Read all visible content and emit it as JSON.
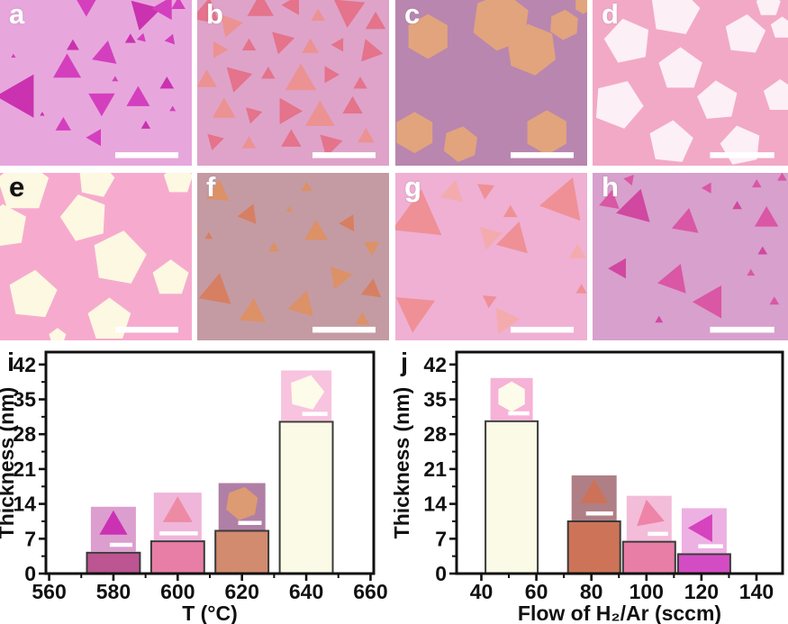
{
  "figure": {
    "panels": [
      {
        "label": "a",
        "label_color": "#ffffff",
        "bg": "#e7a7dc",
        "flake_color": "#d43fbe",
        "flake_color2": "#ca32b0",
        "shape": "triangle",
        "scalebar": true,
        "flakes": [
          [
            45,
            3,
            13,
            180
          ],
          [
            75,
            8,
            20,
            195
          ],
          [
            86,
            5,
            15,
            30
          ],
          [
            93,
            3,
            9,
            0
          ],
          [
            38,
            28,
            8,
            0
          ],
          [
            55,
            33,
            16,
            250
          ],
          [
            35,
            42,
            18,
            240
          ],
          [
            68,
            24,
            7,
            0
          ],
          [
            74,
            23,
            6,
            15
          ],
          [
            89,
            24,
            7,
            20
          ],
          [
            11,
            58,
            28,
            270
          ],
          [
            53,
            61,
            17,
            180
          ],
          [
            72,
            60,
            15,
            0
          ],
          [
            87,
            51,
            9,
            0
          ],
          [
            33,
            76,
            10,
            0
          ],
          [
            50,
            83,
            11,
            30
          ],
          [
            76,
            76,
            6,
            0
          ],
          [
            7,
            34,
            3,
            0
          ],
          [
            60,
            48,
            4,
            0
          ],
          [
            22,
            69,
            3,
            0
          ],
          [
            90,
            66,
            4,
            0
          ]
        ]
      },
      {
        "label": "b",
        "label_color": "#ffffff",
        "bg": "#dfa3c9",
        "flake_color": "#e4738b",
        "flake_color2": "#ec9292",
        "shape": "triangle",
        "scalebar": true,
        "flakes": [
          [
            5,
            8,
            18,
            10
          ],
          [
            17,
            15,
            15,
            200
          ],
          [
            33,
            5,
            17,
            0
          ],
          [
            50,
            3,
            13,
            150
          ],
          [
            63,
            10,
            9,
            0
          ],
          [
            79,
            6,
            20,
            185
          ],
          [
            93,
            14,
            13,
            0
          ],
          [
            11,
            30,
            11,
            210
          ],
          [
            27,
            28,
            9,
            0
          ],
          [
            44,
            25,
            15,
            195
          ],
          [
            59,
            29,
            11,
            0
          ],
          [
            74,
            27,
            9,
            30
          ],
          [
            90,
            31,
            15,
            220
          ],
          [
            5,
            49,
            13,
            0
          ],
          [
            21,
            47,
            17,
            195
          ],
          [
            37,
            45,
            9,
            0
          ],
          [
            54,
            49,
            20,
            0
          ],
          [
            69,
            45,
            11,
            210
          ],
          [
            85,
            51,
            9,
            0
          ],
          [
            14,
            67,
            15,
            0
          ],
          [
            29,
            69,
            11,
            195
          ],
          [
            47,
            67,
            17,
            210
          ],
          [
            64,
            71,
            19,
            0
          ],
          [
            81,
            65,
            13,
            0
          ],
          [
            9,
            85,
            11,
            195
          ],
          [
            27,
            87,
            9,
            0
          ],
          [
            49,
            85,
            13,
            0
          ],
          [
            69,
            87,
            15,
            195
          ],
          [
            88,
            83,
            11,
            0
          ]
        ]
      },
      {
        "label": "c",
        "label_color": "#ffffff",
        "bg": "#b986af",
        "flake_color": "#e2a47c",
        "shape": "hexagon",
        "scalebar": true,
        "flakes": [
          [
            17,
            22,
            25,
            0
          ],
          [
            55,
            13,
            33,
            8
          ],
          [
            71,
            30,
            29,
            -8
          ],
          [
            88,
            15,
            17,
            4
          ],
          [
            10,
            80,
            23,
            0
          ],
          [
            34,
            87,
            20,
            8
          ],
          [
            79,
            80,
            25,
            0
          ],
          [
            98,
            3,
            10,
            0
          ]
        ]
      },
      {
        "label": "d",
        "label_color": "#ffffff",
        "bg": "#f2a9c6",
        "flake_color": "#fceff6",
        "shape": "pentagon",
        "scalebar": true,
        "flakes": [
          [
            42,
            7,
            28,
            10
          ],
          [
            18,
            25,
            26,
            -12
          ],
          [
            78,
            21,
            23,
            6
          ],
          [
            45,
            42,
            25,
            0
          ],
          [
            13,
            63,
            28,
            22
          ],
          [
            64,
            61,
            23,
            -5
          ],
          [
            96,
            58,
            19,
            0
          ],
          [
            40,
            86,
            25,
            6
          ],
          [
            76,
            88,
            23,
            -12
          ],
          [
            97,
            17,
            13,
            0
          ],
          [
            90,
            3,
            14,
            0
          ]
        ]
      },
      {
        "label": "e",
        "label_color": "#111111",
        "bg": "#f6abce",
        "flake_color": "#fdf8e1",
        "shape": "pentagon",
        "scalebar": true,
        "flakes": [
          [
            12,
            8,
            30,
            0
          ],
          [
            50,
            4,
            21,
            12
          ],
          [
            93,
            4,
            17,
            0
          ],
          [
            3,
            32,
            25,
            -8
          ],
          [
            44,
            27,
            27,
            -15
          ],
          [
            62,
            51,
            31,
            10
          ],
          [
            89,
            63,
            21,
            0
          ],
          [
            17,
            73,
            28,
            6
          ],
          [
            57,
            88,
            25,
            0
          ],
          [
            30,
            98,
            10,
            0
          ]
        ]
      },
      {
        "label": "f",
        "label_color": "#ffffff",
        "bg": "#c49ba3",
        "flake_color": "#dc9166",
        "flake_color2": "#d77f62",
        "shape": "triangle",
        "scalebar": true,
        "flakes": [
          [
            11,
            12,
            15,
            6
          ],
          [
            27,
            25,
            13,
            22
          ],
          [
            57,
            9,
            7,
            0
          ],
          [
            40,
            45,
            7,
            0
          ],
          [
            10,
            71,
            21,
            10
          ],
          [
            29,
            84,
            17,
            4
          ],
          [
            62,
            36,
            15,
            0
          ],
          [
            79,
            30,
            11,
            28
          ],
          [
            91,
            44,
            10,
            180
          ],
          [
            74,
            62,
            15,
            200
          ],
          [
            91,
            70,
            13,
            8
          ],
          [
            55,
            79,
            17,
            16
          ],
          [
            86,
            88,
            9,
            0
          ],
          [
            6,
            38,
            5,
            0
          ],
          [
            48,
            22,
            4,
            0
          ]
        ]
      },
      {
        "label": "g",
        "label_color": "#ffffff",
        "bg": "#efb0d3",
        "flake_color": "#ef9097",
        "flake_color2": "#f4abae",
        "shape": "triangle",
        "scalebar": true,
        "flakes": [
          [
            12,
            27,
            32,
            6
          ],
          [
            30,
            12,
            15,
            12
          ],
          [
            47,
            10,
            11,
            185
          ],
          [
            60,
            24,
            9,
            0
          ],
          [
            49,
            38,
            15,
            195
          ],
          [
            62,
            40,
            21,
            15
          ],
          [
            88,
            17,
            28,
            20
          ],
          [
            95,
            48,
            11,
            240
          ],
          [
            10,
            82,
            25,
            185
          ],
          [
            49,
            76,
            9,
            185
          ],
          [
            57,
            88,
            17,
            205
          ],
          [
            97,
            70,
            7,
            0
          ]
        ]
      },
      {
        "label": "h",
        "label_color": "#ffffff",
        "bg": "#d8a0cd",
        "flake_color": "#d957a4",
        "flake_color2": "#d048a0",
        "shape": "triangle",
        "scalebar": true,
        "flakes": [
          [
            9,
            17,
            13,
            250
          ],
          [
            22,
            21,
            22,
            15
          ],
          [
            48,
            30,
            17,
            10
          ],
          [
            89,
            28,
            15,
            0
          ],
          [
            14,
            57,
            13,
            270
          ],
          [
            42,
            64,
            19,
            20
          ],
          [
            61,
            77,
            21,
            150
          ],
          [
            74,
            20,
            6,
            0
          ],
          [
            84,
            7,
            6,
            0
          ],
          [
            59,
            9,
            7,
            30
          ],
          [
            87,
            47,
            6,
            0
          ],
          [
            81,
            60,
            5,
            0
          ],
          [
            93,
            77,
            6,
            0
          ],
          [
            34,
            88,
            5,
            0
          ],
          [
            19,
            4,
            7,
            40
          ],
          [
            97,
            3,
            6,
            0
          ]
        ]
      }
    ],
    "scalebar_color": "#ffffff",
    "axis_color": "#111111"
  },
  "chart_data": [
    {
      "id": "i",
      "panel_label": "i",
      "type": "bar",
      "title": "",
      "xlabel": "T (°C)",
      "ylabel": "Thickness (nm)",
      "categories": [
        580,
        600,
        620,
        640
      ],
      "values": [
        4.2,
        6.5,
        8.6,
        30.5
      ],
      "bar_centers": [
        580,
        600,
        620,
        640
      ],
      "bar_width_units": 16.5,
      "bar_colors": [
        "#bc5591",
        "#e87ea6",
        "#d28b6e",
        "#fafae6"
      ],
      "bar_edge": "#3a3a3a",
      "xlim": [
        559,
        661
      ],
      "ylim": [
        0,
        44.5
      ],
      "xticks": [
        560,
        580,
        600,
        620,
        640,
        660
      ],
      "yticks": [
        0,
        7,
        14,
        21,
        28,
        35,
        42
      ],
      "minor_x_step": 10,
      "minor_y_step": 3.5,
      "grid": false,
      "legend": false,
      "insets": [
        {
          "bg": "#dc9ecf",
          "shape": "triangle",
          "fill": "#cb31b3",
          "size": 50,
          "sb": 0.5,
          "rot": 0
        },
        {
          "bg": "#efb6da",
          "shape": "triangle",
          "fill": "#ee8ba4",
          "size": 53,
          "sb": 0.8,
          "rot": 0
        },
        {
          "bg": "#b07fa6",
          "shape": "hexagon",
          "fill": "#dc9b72",
          "size": 52,
          "sb": 0.5,
          "rot": 10
        },
        {
          "bg": "#f8c3df",
          "shape": "pentagon",
          "fill": "#fdfbe9",
          "size": 56,
          "sb": 0.5,
          "rot": 15
        }
      ]
    },
    {
      "id": "j",
      "panel_label": "j",
      "type": "bar",
      "title": "",
      "xlabel": "Flow of H₂/Ar (sccm)",
      "ylabel": "Thickness (nm)",
      "categories": [
        50,
        80,
        100,
        120
      ],
      "values": [
        30.6,
        10.5,
        6.4,
        3.9
      ],
      "bar_centers": [
        51,
        81,
        101,
        121
      ],
      "bar_width_units": 19,
      "bar_colors": [
        "#fafae6",
        "#cd7458",
        "#e87ea6",
        "#d44cc4"
      ],
      "bar_edge": "#3a3a3a",
      "xlim": [
        31,
        149.5
      ],
      "ylim": [
        0,
        44.5
      ],
      "xticks": [
        40,
        60,
        80,
        100,
        120,
        140
      ],
      "yticks": [
        0,
        7,
        14,
        21,
        28,
        35,
        42
      ],
      "minor_x_step": 10,
      "minor_y_step": 3.5,
      "grid": false,
      "legend": false,
      "insets": [
        {
          "bg": "#f6b2d7",
          "shape": "hexagon",
          "fill": "#fdfbe9",
          "size": 47,
          "sb": 0.5,
          "rot": 0
        },
        {
          "bg": "#af7f85",
          "shape": "triangle",
          "fill": "#cd7258",
          "size": 50,
          "sb": 0.6,
          "rot": 0
        },
        {
          "bg": "#f3bcd9",
          "shape": "triangle",
          "fill": "#ee84a7",
          "size": 50,
          "sb": 0.45,
          "rot": -130
        },
        {
          "bg": "#edb0e2",
          "shape": "triangle",
          "fill": "#d643bd",
          "size": 50,
          "sb": 0.55,
          "rot": -90
        }
      ]
    }
  ]
}
